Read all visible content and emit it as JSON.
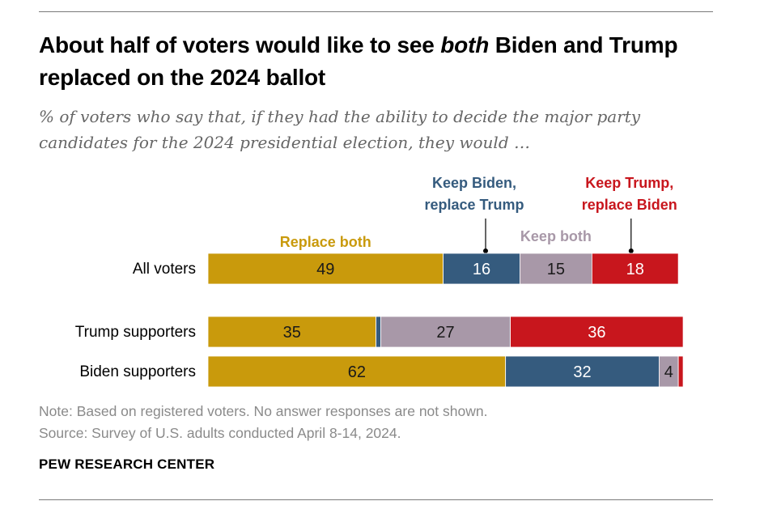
{
  "title": {
    "before": "About half of voters would like to see ",
    "emphasis": "both",
    "after": " Biden and Trump replaced on the 2024 ballot"
  },
  "subtitle": "% of voters who say that, if they had the ability to decide the major party candidates for the 2024 presidential election, they would …",
  "chart_data": {
    "type": "bar",
    "orientation": "horizontal",
    "stacked": true,
    "categories": [
      "All voters",
      "Trump supporters",
      "Biden supporters"
    ],
    "series": [
      {
        "name": "Replace both",
        "color": "#c99a0c",
        "values": [
          49,
          35,
          62
        ],
        "labels": [
          "49",
          "35",
          "62"
        ]
      },
      {
        "name": "Keep Biden, replace Trump",
        "color": "#355b7e",
        "values": [
          16,
          1,
          32
        ],
        "labels": [
          "16",
          "",
          "32"
        ]
      },
      {
        "name": "Keep both",
        "color": "#a898a8",
        "values": [
          15,
          27,
          4
        ],
        "labels": [
          "15",
          "27",
          "4"
        ]
      },
      {
        "name": "Keep Trump, replace Biden",
        "color": "#c8161d",
        "values": [
          18,
          36,
          1
        ],
        "labels": [
          "18",
          "36",
          ""
        ]
      }
    ],
    "legend": {
      "replace_both": "Replace both",
      "keep_biden_line1": "Keep Biden,",
      "keep_biden_line2": "replace Trump",
      "keep_both": "Keep both",
      "keep_trump_line1": "Keep Trump,",
      "keep_trump_line2": "replace Biden"
    },
    "xlim": [
      0,
      100
    ]
  },
  "note": "Note: Based on registered voters. No answer responses are not shown.",
  "source": "Source: Survey of U.S. adults conducted April 8-14, 2024.",
  "brand": "PEW RESEARCH CENTER"
}
